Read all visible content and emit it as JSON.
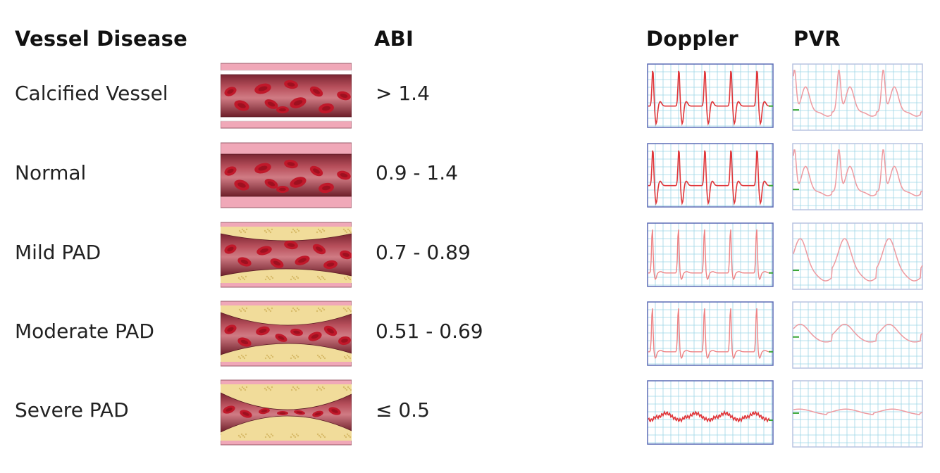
{
  "headers": {
    "vessel_disease": "Vessel Disease",
    "abi": "ABI",
    "doppler": "Doppler",
    "pvr": "PVR"
  },
  "rows": [
    {
      "label": "Calcified Vessel",
      "abi": "> 1.4"
    },
    {
      "label": "Normal",
      "abi": "0.9 - 1.4"
    },
    {
      "label": "Mild PAD",
      "abi": "0.7 - 0.89"
    },
    {
      "label": "Moderate PAD",
      "abi": "0.51 - 0.69"
    },
    {
      "label": "Severe PAD",
      "abi": "≤ 0.5"
    }
  ],
  "colors": {
    "grid_line": "#9ed6e6",
    "doppler_border": "#5b6bb5",
    "pvr_border": "#b9c3e0",
    "doppler_trace": "#e0363a",
    "doppler_trace_faint": "#ee8284",
    "pvr_trace": "#ee9aa0",
    "baseline_marker": "#3aa635",
    "vessel_wall": "#f0a8b8",
    "vessel_lumen": "#b8505c",
    "blood_cell": "#c0182a",
    "plaque": "#f1dc9a",
    "calcification": "#ffffff"
  }
}
